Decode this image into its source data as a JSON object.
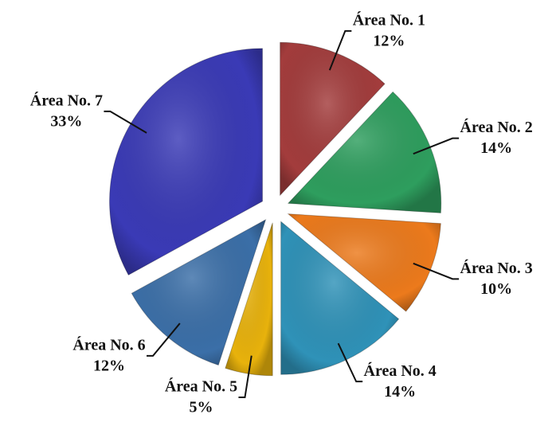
{
  "chart_data": {
    "type": "pie",
    "categories": [
      "Área No. 1",
      "Área No. 2",
      "Área No. 3",
      "Área No. 4",
      "Área No. 5",
      "Área No. 6",
      "Área No. 7"
    ],
    "values": [
      12,
      14,
      10,
      14,
      5,
      12,
      33
    ],
    "value_labels": [
      "12%",
      "14%",
      "10%",
      "14%",
      "5%",
      "12%",
      "33%"
    ],
    "colors": [
      "#a33c3c",
      "#2e9e5e",
      "#ec7a1c",
      "#2f92b8",
      "#e8b20c",
      "#3b6fa8",
      "#3a3ab6"
    ]
  }
}
